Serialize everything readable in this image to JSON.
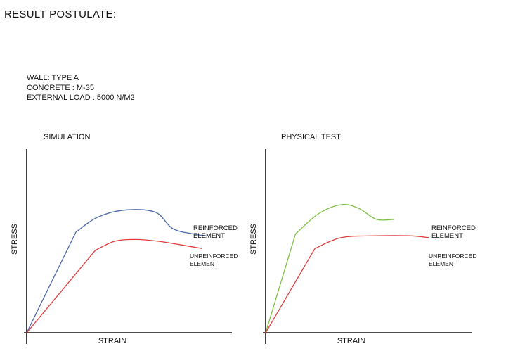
{
  "page": {
    "title": "RESULT POSTULATE:",
    "specs": [
      "WALL: TYPE A",
      "CONCRETE : M-35",
      "EXTERNAL LOAD : 5000 N/M2"
    ]
  },
  "colors": {
    "sim_reinforced": "#4a6aa8",
    "test_reinforced": "#7cc043",
    "unreinforced": "#e23b3b",
    "axis": "#111111"
  },
  "chart_data": [
    {
      "type": "line",
      "title": "SIMULATION",
      "xlabel": "STRAIN",
      "ylabel": "STRESS",
      "xlim": [
        0,
        10
      ],
      "ylim": [
        0,
        10
      ],
      "grid": false,
      "series": [
        {
          "name": "REINFORCED ELEMENT",
          "color": "#4a6aa8",
          "points": [
            [
              0,
              0
            ],
            [
              2.8,
              5.5
            ],
            [
              4,
              6.3
            ],
            [
              5.5,
              6.7
            ],
            [
              7.3,
              6.6
            ],
            [
              8.3,
              5.7
            ],
            [
              9.5,
              5.4
            ],
            [
              10.2,
              5.3
            ]
          ]
        },
        {
          "name": "UNREINFORCED ELEMENT",
          "color": "#e23b3b",
          "points": [
            [
              0,
              0
            ],
            [
              3.9,
              4.5
            ],
            [
              5,
              5.0
            ],
            [
              6.2,
              5.1
            ],
            [
              7.5,
              5.0
            ],
            [
              8.8,
              4.8
            ],
            [
              10,
              4.6
            ]
          ]
        }
      ],
      "legend": [
        "REINFORCED ELEMENT",
        "UNREINFORCED ELEMENT"
      ]
    },
    {
      "type": "line",
      "title": "PHYSICAL TEST",
      "xlabel": "STRAIN",
      "ylabel": "STRESS",
      "xlim": [
        0,
        10
      ],
      "ylim": [
        0,
        10
      ],
      "grid": false,
      "series": [
        {
          "name": "REINFORCED ELEMENT",
          "color": "#7cc043",
          "points": [
            [
              0,
              0
            ],
            [
              1.7,
              5.4
            ],
            [
              3,
              6.5
            ],
            [
              4.3,
              7.0
            ],
            [
              5.3,
              6.8
            ],
            [
              6.3,
              6.2
            ],
            [
              7.3,
              6.2
            ]
          ]
        },
        {
          "name": "UNREINFORCED ELEMENT",
          "color": "#e23b3b",
          "points": [
            [
              0,
              0
            ],
            [
              2.8,
              4.6
            ],
            [
              4.3,
              5.2
            ],
            [
              6.3,
              5.3
            ],
            [
              8.2,
              5.3
            ],
            [
              9.3,
              5.2
            ]
          ]
        }
      ],
      "legend": [
        "REINFORCED ELEMENT",
        "UNREINFORCED ELEMENT"
      ]
    }
  ]
}
